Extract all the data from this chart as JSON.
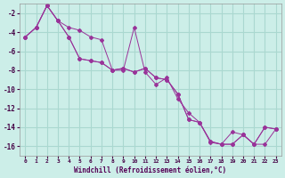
{
  "xlabel": "Windchill (Refroidissement éolien,°C)",
  "background_color": "#cceee8",
  "grid_color": "#aad8d0",
  "line_color": "#993399",
  "xlim": [
    -0.5,
    23.5
  ],
  "ylim": [
    -17,
    -1
  ],
  "xticks": [
    0,
    1,
    2,
    3,
    4,
    5,
    6,
    7,
    8,
    9,
    10,
    11,
    12,
    13,
    14,
    15,
    16,
    17,
    18,
    19,
    20,
    21,
    22,
    23
  ],
  "yticks": [
    -2,
    -4,
    -6,
    -8,
    -10,
    -12,
    -14,
    -16
  ],
  "s1_x": [
    0,
    1,
    2,
    3,
    4,
    5,
    6,
    7,
    8,
    9,
    10,
    11,
    12,
    13,
    14,
    15,
    16,
    17,
    18,
    19,
    20,
    21,
    22,
    23
  ],
  "s1_y": [
    -4.5,
    -3.5,
    -1.2,
    -2.8,
    -4.5,
    -6.8,
    -7.0,
    -7.2,
    -8.0,
    -7.8,
    -8.2,
    -7.8,
    -8.8,
    -9.0,
    -10.5,
    -13.2,
    -13.5,
    -15.5,
    -15.8,
    -15.8,
    -14.8,
    -15.8,
    -14.0,
    -14.2
  ],
  "s2_x": [
    0,
    1,
    2,
    3,
    4,
    5,
    6,
    7,
    8,
    9,
    10,
    11,
    12,
    13,
    14,
    15,
    16,
    17,
    18,
    19,
    20,
    21,
    22,
    23
  ],
  "s2_y": [
    -4.5,
    -3.5,
    -1.2,
    -2.8,
    -3.5,
    -3.8,
    -4.5,
    -4.8,
    -8.0,
    -8.0,
    -3.5,
    -8.2,
    -9.5,
    -8.8,
    -11.0,
    -12.5,
    -13.5,
    -15.6,
    -15.8,
    -15.8,
    -14.8,
    -15.8,
    -14.0,
    -14.2
  ],
  "s3_x": [
    0,
    1,
    2,
    3,
    4,
    5,
    6,
    7,
    8,
    9,
    10,
    11,
    12,
    13,
    14,
    15,
    16,
    17,
    18,
    19,
    20,
    21,
    22,
    23
  ],
  "s3_y": [
    -4.5,
    -3.5,
    -1.2,
    -2.8,
    -4.5,
    -6.8,
    -7.0,
    -7.2,
    -8.0,
    -7.8,
    -8.2,
    -7.8,
    -8.8,
    -9.0,
    -10.5,
    -13.2,
    -13.5,
    -15.5,
    -15.8,
    -14.5,
    -14.8,
    -15.8,
    -15.8,
    -14.2
  ]
}
